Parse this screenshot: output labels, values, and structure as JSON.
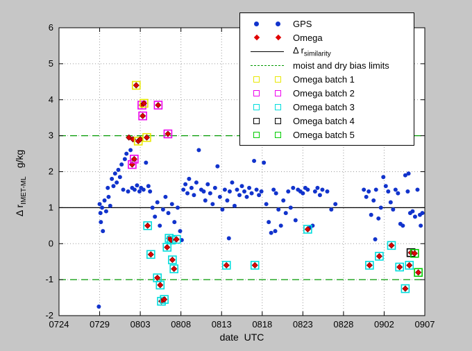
{
  "figure": {
    "background": "#c6c6c6",
    "plot_background": "#ffffff"
  },
  "axes": {
    "ylabel_main": "Δ r",
    "ylabel_sub": "IMET-ML",
    "ylabel_unit": "g/kg"
  },
  "chart_data": {
    "type": "scatter",
    "title": "",
    "xlabel": "date  UTC",
    "ylabel": "Δ r_IMET-ML  g/kg",
    "x_tick_labels": [
      "0724",
      "0729",
      "0803",
      "0808",
      "0813",
      "0818",
      "0823",
      "0828",
      "0902",
      "0907"
    ],
    "x_tick_days": [
      0,
      5,
      10,
      15,
      20,
      25,
      30,
      35,
      40,
      45
    ],
    "xlim_days": [
      0,
      45
    ],
    "ylim": [
      -2,
      6
    ],
    "y_ticks": [
      -2,
      -1,
      0,
      1,
      2,
      3,
      4,
      5,
      6
    ],
    "grid": "dotted",
    "legend_position": "top-right",
    "reference_lines": [
      {
        "label": "Δ r_similarity",
        "y": 1,
        "color": "#000000",
        "style": "solid"
      },
      {
        "label": "moist bias limit",
        "y": 3,
        "color": "#009900",
        "style": "dashed"
      },
      {
        "label": "dry bias limit",
        "y": -1,
        "color": "#009900",
        "style": "dashed"
      }
    ],
    "batch_colors": {
      "1": "#e8e800",
      "2": "#ee00ee",
      "3": "#00dddd",
      "4": "#000000",
      "5": "#00cc00"
    },
    "series": [
      {
        "name": "GPS",
        "marker": "dot",
        "color": "#1133cc",
        "points": [
          [
            4.9,
            -1.75
          ],
          [
            5.0,
            1.1
          ],
          [
            5.1,
            0.85
          ],
          [
            5.15,
            0.6
          ],
          [
            5.3,
            1.0
          ],
          [
            5.4,
            0.35
          ],
          [
            5.6,
            1.2
          ],
          [
            5.8,
            0.9
          ],
          [
            6.0,
            1.55
          ],
          [
            6.1,
            1.3
          ],
          [
            6.3,
            1.05
          ],
          [
            6.5,
            1.8
          ],
          [
            6.7,
            1.6
          ],
          [
            6.9,
            1.95
          ],
          [
            7.1,
            1.7
          ],
          [
            7.3,
            2.05
          ],
          [
            7.5,
            1.85
          ],
          [
            7.7,
            2.2
          ],
          [
            7.9,
            1.5
          ],
          [
            8.1,
            2.35
          ],
          [
            8.3,
            2.5
          ],
          [
            8.5,
            1.45
          ],
          [
            8.8,
            2.6
          ],
          [
            9.0,
            1.55
          ],
          [
            9.3,
            1.5
          ],
          [
            9.6,
            1.62
          ],
          [
            9.9,
            1.45
          ],
          [
            10.1,
            1.55
          ],
          [
            10.4,
            1.5
          ],
          [
            10.7,
            2.25
          ],
          [
            11.0,
            1.6
          ],
          [
            11.2,
            1.45
          ],
          [
            11.5,
            1.0
          ],
          [
            11.8,
            0.75
          ],
          [
            12.1,
            1.15
          ],
          [
            12.4,
            0.5
          ],
          [
            12.8,
            0.95
          ],
          [
            13.1,
            1.3
          ],
          [
            13.45,
            0.85
          ],
          [
            13.9,
            1.1
          ],
          [
            14.2,
            0.6
          ],
          [
            14.6,
            1.0
          ],
          [
            14.9,
            0.35
          ],
          [
            15.1,
            0.1
          ],
          [
            15.3,
            1.5
          ],
          [
            15.55,
            1.65
          ],
          [
            15.8,
            1.4
          ],
          [
            16.0,
            1.8
          ],
          [
            16.3,
            1.55
          ],
          [
            16.6,
            1.35
          ],
          [
            16.9,
            1.7
          ],
          [
            17.2,
            2.6
          ],
          [
            17.5,
            1.5
          ],
          [
            17.8,
            1.45
          ],
          [
            18.0,
            1.2
          ],
          [
            18.3,
            1.65
          ],
          [
            18.6,
            1.4
          ],
          [
            18.9,
            1.1
          ],
          [
            19.2,
            1.55
          ],
          [
            19.5,
            2.15
          ],
          [
            19.8,
            1.3
          ],
          [
            20.1,
            0.95
          ],
          [
            20.4,
            1.5
          ],
          [
            20.7,
            1.2
          ],
          [
            20.9,
            0.15
          ],
          [
            21.0,
            1.45
          ],
          [
            21.3,
            1.7
          ],
          [
            21.6,
            1.05
          ],
          [
            21.9,
            1.5
          ],
          [
            22.2,
            1.35
          ],
          [
            22.5,
            1.6
          ],
          [
            22.8,
            1.45
          ],
          [
            23.1,
            1.3
          ],
          [
            23.4,
            1.55
          ],
          [
            23.7,
            1.4
          ],
          [
            24.0,
            2.3
          ],
          [
            24.3,
            1.5
          ],
          [
            24.6,
            1.35
          ],
          [
            24.9,
            1.45
          ],
          [
            25.2,
            2.25
          ],
          [
            25.5,
            1.1
          ],
          [
            25.8,
            0.6
          ],
          [
            26.1,
            0.3
          ],
          [
            26.4,
            1.5
          ],
          [
            26.6,
            0.35
          ],
          [
            26.7,
            1.4
          ],
          [
            27.0,
            0.95
          ],
          [
            27.3,
            0.5
          ],
          [
            27.6,
            1.2
          ],
          [
            27.9,
            0.85
          ],
          [
            28.2,
            1.45
          ],
          [
            28.5,
            1.0
          ],
          [
            28.8,
            1.55
          ],
          [
            29.1,
            0.65
          ],
          [
            29.4,
            1.5
          ],
          [
            29.7,
            1.45
          ],
          [
            30.0,
            1.4
          ],
          [
            30.3,
            1.55
          ],
          [
            30.6,
            1.5
          ],
          [
            30.9,
            0.45
          ],
          [
            31.2,
            0.5
          ],
          [
            31.5,
            1.45
          ],
          [
            31.8,
            1.55
          ],
          [
            32.1,
            1.35
          ],
          [
            32.4,
            1.5
          ],
          [
            33.0,
            1.45
          ],
          [
            33.5,
            0.95
          ],
          [
            34.0,
            1.1
          ],
          [
            37.5,
            1.5
          ],
          [
            37.8,
            1.3
          ],
          [
            38.1,
            1.45
          ],
          [
            38.4,
            0.8
          ],
          [
            38.7,
            1.2
          ],
          [
            38.9,
            0.12
          ],
          [
            39.0,
            1.5
          ],
          [
            39.3,
            0.7
          ],
          [
            39.6,
            1.0
          ],
          [
            39.9,
            1.85
          ],
          [
            40.2,
            1.6
          ],
          [
            40.5,
            1.45
          ],
          [
            40.8,
            1.15
          ],
          [
            41.1,
            0.95
          ],
          [
            41.4,
            1.5
          ],
          [
            41.7,
            1.4
          ],
          [
            42.0,
            0.55
          ],
          [
            42.3,
            0.5
          ],
          [
            42.6,
            1.9
          ],
          [
            42.9,
            1.45
          ],
          [
            43.0,
            1.95
          ],
          [
            43.2,
            0.85
          ],
          [
            43.5,
            0.9
          ],
          [
            43.8,
            0.75
          ],
          [
            44.1,
            1.5
          ],
          [
            44.4,
            0.8
          ],
          [
            44.5,
            0.5
          ],
          [
            44.7,
            0.85
          ]
        ]
      },
      {
        "name": "Omega",
        "marker": "diamond",
        "color": "#e00000",
        "points_format": "[day, value, batch (0 = none)]",
        "points": [
          [
            8.6,
            2.95,
            0
          ],
          [
            9.1,
            2.9,
            0
          ],
          [
            9.0,
            2.2,
            2
          ],
          [
            9.25,
            2.35,
            2
          ],
          [
            9.5,
            4.4,
            1
          ],
          [
            9.75,
            2.85,
            1
          ],
          [
            10.0,
            2.9,
            0
          ],
          [
            10.2,
            3.85,
            2
          ],
          [
            10.45,
            3.9,
            1
          ],
          [
            10.3,
            3.55,
            2
          ],
          [
            10.8,
            2.95,
            1
          ],
          [
            12.2,
            3.85,
            2
          ],
          [
            13.4,
            3.05,
            2
          ],
          [
            10.9,
            0.5,
            3
          ],
          [
            11.3,
            -0.3,
            3
          ],
          [
            12.1,
            -0.95,
            3
          ],
          [
            12.45,
            -1.15,
            3
          ],
          [
            12.6,
            -1.6,
            3
          ],
          [
            12.95,
            -1.55,
            3
          ],
          [
            13.3,
            -0.1,
            3
          ],
          [
            13.55,
            0.15,
            3
          ],
          [
            13.8,
            0.1,
            3
          ],
          [
            13.95,
            -0.45,
            3
          ],
          [
            14.15,
            -0.7,
            3
          ],
          [
            14.45,
            0.12,
            3
          ],
          [
            20.6,
            -0.6,
            3
          ],
          [
            24.1,
            -0.6,
            3
          ],
          [
            30.6,
            0.4,
            3
          ],
          [
            38.2,
            -0.6,
            3
          ],
          [
            39.4,
            -0.35,
            3
          ],
          [
            40.9,
            -0.05,
            3
          ],
          [
            41.9,
            -0.65,
            3
          ],
          [
            42.6,
            -1.25,
            3
          ],
          [
            43.1,
            -0.6,
            3
          ],
          [
            43.3,
            -0.25,
            4
          ],
          [
            43.75,
            -0.27,
            5
          ],
          [
            44.2,
            -0.8,
            5
          ]
        ]
      }
    ]
  },
  "legend": {
    "items": [
      {
        "label": "GPS",
        "marker": "dot",
        "color": "#1133cc"
      },
      {
        "label": "Omega",
        "marker": "diamond",
        "color": "#e00000"
      },
      {
        "label": "Δ r",
        "sub": "similarity",
        "marker": "line-solid",
        "color": "#000000"
      },
      {
        "label": "moist and dry bias limits",
        "marker": "line-dashed",
        "color": "#009900"
      },
      {
        "label": "Omega batch 1",
        "marker": "square",
        "color": "#e8e800"
      },
      {
        "label": "Omega batch 2",
        "marker": "square",
        "color": "#ee00ee"
      },
      {
        "label": "Omega batch 3",
        "marker": "square",
        "color": "#00dddd"
      },
      {
        "label": "Omega batch 4",
        "marker": "square",
        "color": "#000000"
      },
      {
        "label": "Omega batch 5",
        "marker": "square",
        "color": "#00cc00"
      }
    ]
  }
}
